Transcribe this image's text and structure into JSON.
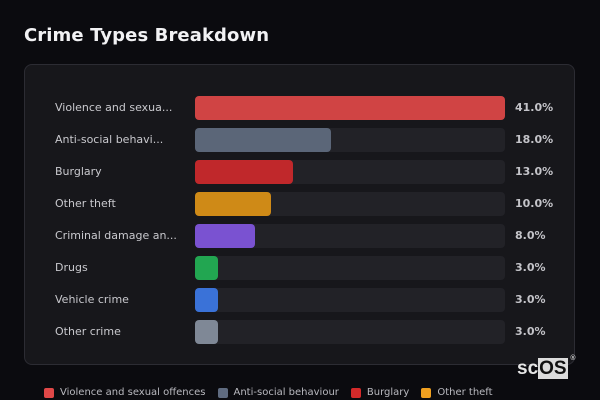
{
  "header": {
    "title": "Crime Types Breakdown"
  },
  "colors": {
    "background": "#0b0b0f",
    "panel": "#17171b",
    "track": "#222227"
  },
  "rows": [
    {
      "label": "Violence and sexua...",
      "full_label": "Violence and sexual offences",
      "value": 41.0,
      "pct": "41.0%",
      "color": "#d04444"
    },
    {
      "label": "Anti-social behavi...",
      "full_label": "Anti-social behaviour",
      "value": 18.0,
      "pct": "18.0%",
      "color": "#5b6678"
    },
    {
      "label": "Burglary",
      "full_label": "Burglary",
      "value": 13.0,
      "pct": "13.0%",
      "color": "#c0282b"
    },
    {
      "label": "Other theft",
      "full_label": "Other theft",
      "value": 10.0,
      "pct": "10.0%",
      "color": "#cf8a17"
    },
    {
      "label": "Criminal damage an...",
      "full_label": "Criminal damage and arson",
      "value": 8.0,
      "pct": "8.0%",
      "color": "#7a52d1"
    },
    {
      "label": "Drugs",
      "full_label": "Drugs",
      "value": 3.0,
      "pct": "3.0%",
      "color": "#22a651"
    },
    {
      "label": "Vehicle crime",
      "full_label": "Vehicle crime",
      "value": 3.0,
      "pct": "3.0%",
      "color": "#3a72d8"
    },
    {
      "label": "Other crime",
      "full_label": "Other crime",
      "value": 3.0,
      "pct": "3.0%",
      "color": "#7f8896"
    }
  ],
  "legend": [
    {
      "label": "Violence and sexual offences",
      "color": "#e04848"
    },
    {
      "label": "Anti-social behaviour",
      "color": "#5f6b80"
    },
    {
      "label": "Burglary",
      "color": "#d42a2a"
    },
    {
      "label": "Other theft",
      "color": "#f0a020"
    }
  ],
  "logo": {
    "prefix": "sc",
    "boxed": "OS",
    "reg": "®"
  },
  "chart_data": {
    "type": "bar",
    "orientation": "horizontal",
    "title": "Crime Types Breakdown",
    "categories": [
      "Violence and sexual offences",
      "Anti-social behaviour",
      "Burglary",
      "Other theft",
      "Criminal damage and arson",
      "Drugs",
      "Vehicle crime",
      "Other crime"
    ],
    "values": [
      41.0,
      18.0,
      13.0,
      10.0,
      8.0,
      3.0,
      3.0,
      3.0
    ],
    "unit": "%",
    "xlabel": "",
    "ylabel": "",
    "xlim": [
      0,
      41
    ],
    "grid": false,
    "legend_position": "bottom",
    "legend_entries_visible": [
      "Violence and sexual offences",
      "Anti-social behaviour",
      "Burglary",
      "Other theft"
    ]
  }
}
